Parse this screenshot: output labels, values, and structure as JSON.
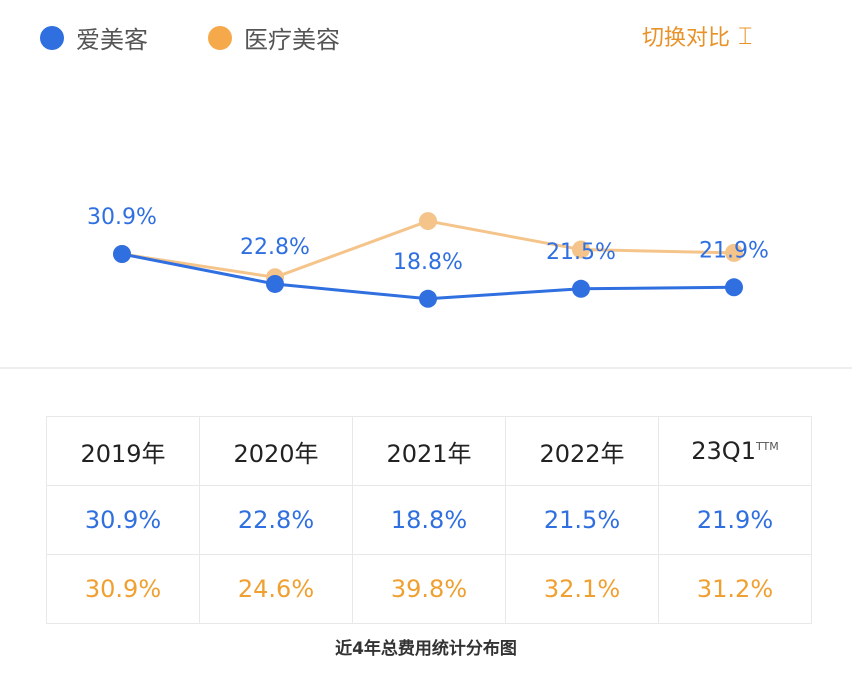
{
  "legend": [
    {
      "label": "爱美客",
      "color": "#2f6fe0"
    },
    {
      "label": "医疗美容",
      "color": "#f5a94a"
    }
  ],
  "switch_label": "切换对比",
  "chart_data": {
    "type": "line",
    "categories": [
      "2019年",
      "2020年",
      "2021年",
      "2022年",
      "23Q1"
    ],
    "series": [
      {
        "name": "爱美客",
        "values": [
          30.9,
          22.8,
          18.8,
          21.5,
          21.9
        ],
        "color": "#2f6fe0"
      },
      {
        "name": "医疗美容",
        "values": [
          30.9,
          24.6,
          39.8,
          32.1,
          31.2
        ],
        "color": "#f5c48a"
      }
    ],
    "data_labels": [
      "30.9%",
      "22.8%",
      "18.8%",
      "21.5%",
      "21.9%"
    ]
  },
  "table": {
    "headers": [
      "2019年",
      "2020年",
      "2021年",
      "2022年",
      "23Q1"
    ],
    "header_sup": "TTM",
    "row1": [
      "30.9%",
      "22.8%",
      "18.8%",
      "21.5%",
      "21.9%"
    ],
    "row2": [
      "30.9%",
      "24.6%",
      "39.8%",
      "32.1%",
      "31.2%"
    ]
  },
  "caption": "近4年总费用统计分布图"
}
